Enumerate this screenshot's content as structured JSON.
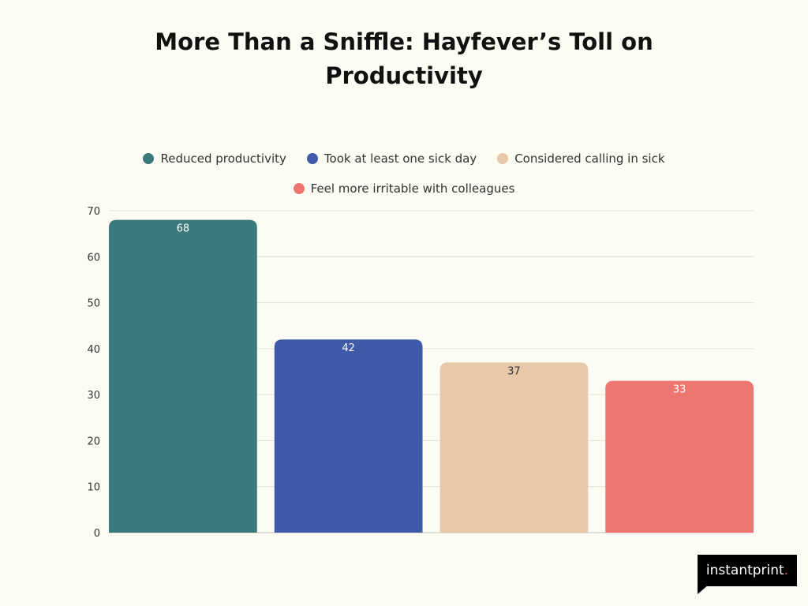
{
  "chart_data": {
    "type": "bar",
    "title_lines": [
      "More Than a Sniffle: Hayfever’s Toll on",
      "Productivity"
    ],
    "categories": [
      "Reduced productivity",
      "Took at least one sick day",
      "Considered calling in sick",
      "Feel more irritable with colleagues"
    ],
    "values": [
      68,
      42,
      37,
      33
    ],
    "colors": [
      "#3a7a7c",
      "#3f5aa8",
      "#e8c8a8",
      "#ee7670"
    ],
    "label_colors": [
      "#ffffff",
      "#ffffff",
      "#333333",
      "#ffffff"
    ],
    "data_labels": [
      "68",
      "42",
      "37",
      "33"
    ],
    "ylim": [
      0,
      70
    ],
    "yticks": [
      0,
      10,
      20,
      30,
      40,
      50,
      60,
      70
    ],
    "ytick_labels": [
      "0",
      "10",
      "20",
      "30",
      "40",
      "50",
      "60",
      "70"
    ],
    "xlabel": "",
    "ylabel": "",
    "grid": true,
    "legend_position": "top-center"
  },
  "brand": {
    "name": "instantprint",
    "suffix": "."
  }
}
